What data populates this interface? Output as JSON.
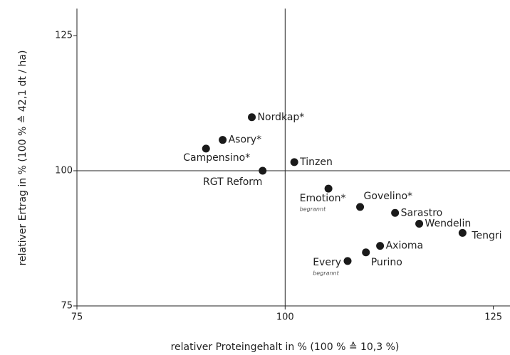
{
  "chart_data": {
    "type": "scatter",
    "xlabel": "relativer Proteingehalt in % (100 % ≙ 10,3 %)",
    "ylabel": "relativer Ertrag in % (100 % ≙  42,1 dt / ha)",
    "labels": [
      "Nordkap*",
      "Asory*",
      "Campensino*",
      "RGT Reform",
      "Tinzen",
      "Emotion*",
      "Govelino*",
      "Sarastro",
      "Wendelin",
      "Tengri",
      "Axioma",
      "Purino",
      "Every"
    ],
    "notes": [
      null,
      null,
      null,
      null,
      null,
      "begrannt",
      null,
      null,
      null,
      null,
      null,
      null,
      "begrannt"
    ],
    "x": [
      96.0,
      92.5,
      90.5,
      97.3,
      101.1,
      105.2,
      109.0,
      113.2,
      116.1,
      121.3,
      111.4,
      109.7,
      107.5
    ],
    "values": [
      109.9,
      105.7,
      104.1,
      100.0,
      101.6,
      96.7,
      93.3,
      92.2,
      90.2,
      88.5,
      86.1,
      84.9,
      83.3
    ],
    "color": "#1a1a1a",
    "xlim": [
      75,
      127
    ],
    "ylim": [
      75,
      130
    ],
    "xticks": [
      75,
      100,
      125
    ],
    "yticks": [
      75,
      100,
      125
    ],
    "hline": 100,
    "vline": 100
  }
}
